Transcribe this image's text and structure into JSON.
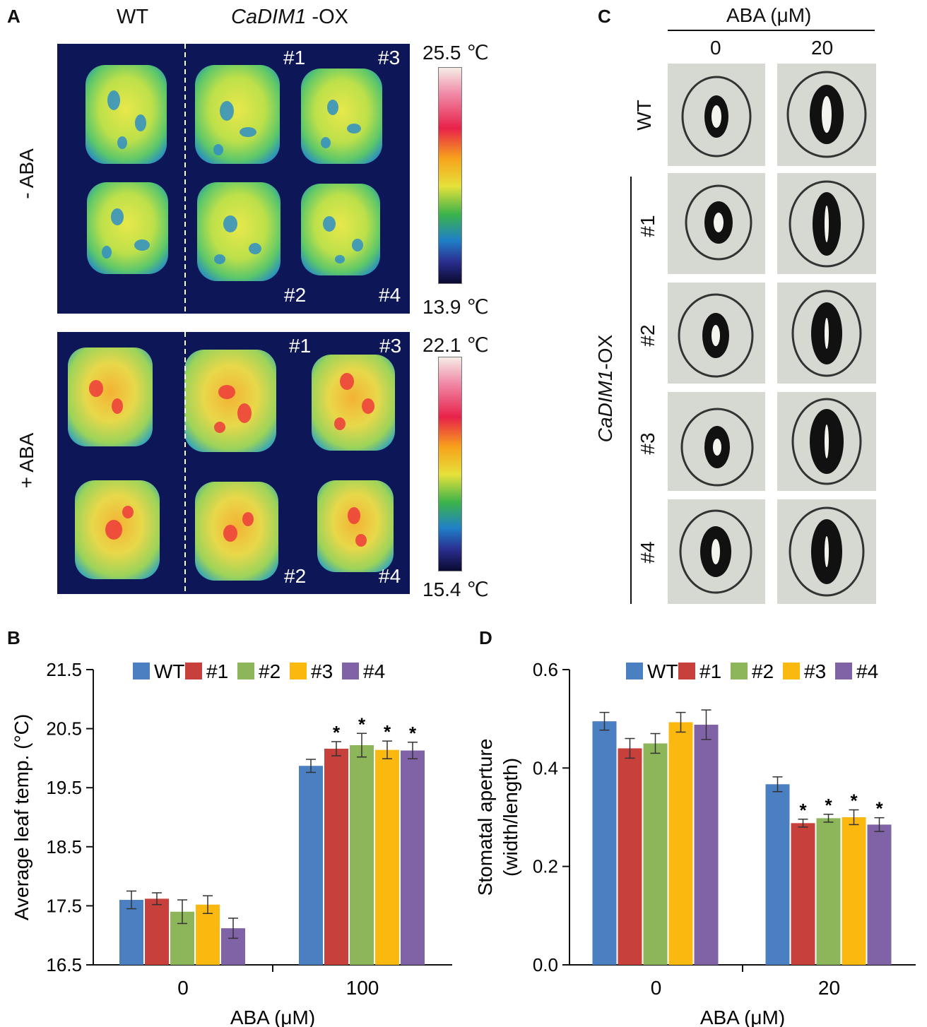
{
  "panel_a": {
    "label": "A",
    "wt_label": "WT",
    "ox_gene": "CaDIM1",
    "ox_suffix": " -OX",
    "row_minus": "- ABA",
    "row_plus": "+ ABA",
    "lines": [
      "#1",
      "#2",
      "#3",
      "#4"
    ],
    "scale_minus": {
      "max": "25.5 ℃",
      "min": "13.9 ℃"
    },
    "scale_plus": {
      "max": "22.1 ℃",
      "min": "15.4 ℃"
    },
    "colors": {
      "background": "#0d1657"
    }
  },
  "panel_c": {
    "label": "C",
    "header": "ABA (μM)",
    "concentrations": [
      "0",
      "20"
    ],
    "wt_label": "WT",
    "ox_gene": "CaDIM1",
    "ox_suffix": "-OX",
    "lines": [
      "#1",
      "#2",
      "#3",
      "#4"
    ]
  },
  "panel_b": {
    "label": "B"
  },
  "panel_d": {
    "label": "D"
  },
  "chart_data": [
    {
      "type": "bar",
      "panel": "B",
      "categories": [
        "0",
        "100"
      ],
      "series": [
        {
          "name": "WT",
          "color": "#4a7fc1",
          "values": [
            17.6,
            19.87
          ],
          "errors": [
            0.15,
            0.11
          ]
        },
        {
          "name": "#1",
          "color": "#c8403b",
          "values": [
            17.62,
            20.16
          ],
          "errors": [
            0.1,
            0.12
          ]
        },
        {
          "name": "#2",
          "color": "#8db55a",
          "values": [
            17.4,
            20.22
          ],
          "errors": [
            0.2,
            0.2
          ]
        },
        {
          "name": "#3",
          "color": "#fbb80f",
          "values": [
            17.52,
            20.14
          ],
          "errors": [
            0.15,
            0.15
          ]
        },
        {
          "name": "#4",
          "color": "#8062a6",
          "values": [
            17.12,
            20.13
          ],
          "errors": [
            0.17,
            0.14
          ]
        }
      ],
      "significant": [
        [
          false,
          false
        ],
        [
          false,
          true
        ],
        [
          false,
          true
        ],
        [
          false,
          true
        ],
        [
          false,
          true
        ]
      ],
      "sig_marker": "*",
      "xlabel": "ABA (μM)",
      "ylabel": "Average leaf temp. (°C)",
      "ylim": [
        16.5,
        21.5
      ],
      "yticks": [
        "16.5",
        "17.5",
        "18.5",
        "19.5",
        "20.5",
        "21.5"
      ]
    },
    {
      "type": "bar",
      "panel": "D",
      "categories": [
        "0",
        "20"
      ],
      "series": [
        {
          "name": "WT",
          "color": "#4a7fc1",
          "values": [
            0.495,
            0.367
          ],
          "errors": [
            0.018,
            0.015
          ]
        },
        {
          "name": "#1",
          "color": "#c8403b",
          "values": [
            0.44,
            0.288
          ],
          "errors": [
            0.02,
            0.008
          ]
        },
        {
          "name": "#2",
          "color": "#8db55a",
          "values": [
            0.45,
            0.298
          ],
          "errors": [
            0.02,
            0.008
          ]
        },
        {
          "name": "#3",
          "color": "#fbb80f",
          "values": [
            0.493,
            0.3
          ],
          "errors": [
            0.02,
            0.015
          ]
        },
        {
          "name": "#4",
          "color": "#8062a6",
          "values": [
            0.488,
            0.285
          ],
          "errors": [
            0.03,
            0.014
          ]
        }
      ],
      "significant": [
        [
          false,
          false
        ],
        [
          false,
          true
        ],
        [
          false,
          true
        ],
        [
          false,
          true
        ],
        [
          false,
          true
        ]
      ],
      "sig_marker": "*",
      "xlabel": "ABA (μM)",
      "ylabel": "Stomatal aperture",
      "ylabel2": "(width/length)",
      "ylim": [
        0.0,
        0.6
      ],
      "yticks": [
        "0.0",
        "0.2",
        "0.4",
        "0.6"
      ]
    }
  ]
}
